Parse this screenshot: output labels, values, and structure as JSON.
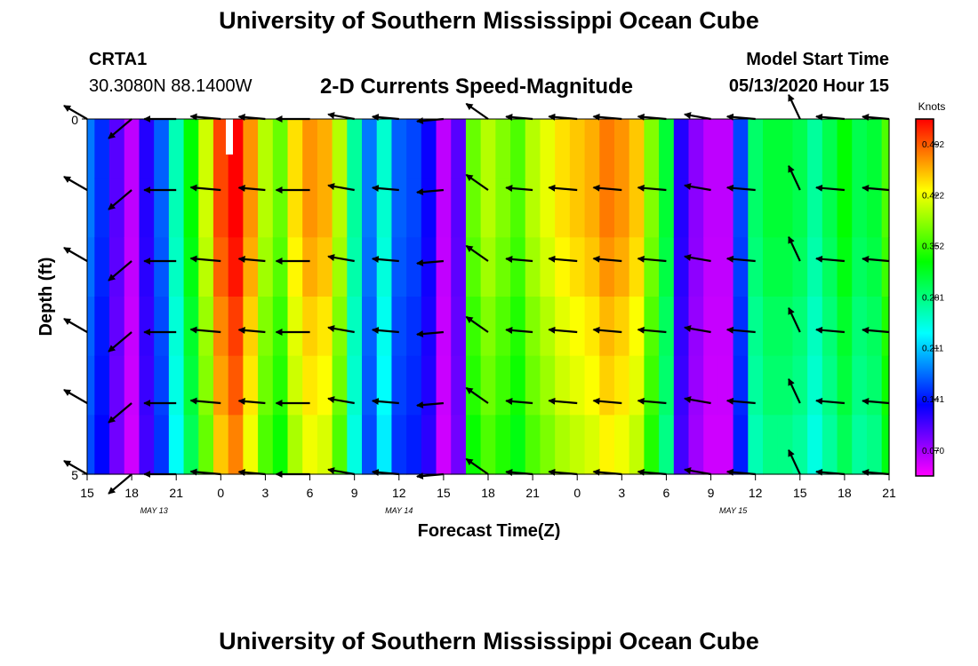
{
  "header": {
    "title": "University of Southern Mississippi Ocean Cube",
    "station_id": "CRTA1",
    "station_coords": "30.3080N 88.1400W",
    "plot_title": "2-D Currents Speed-Magnitude",
    "start_label": "Model Start Time",
    "start_value": "05/13/2020 Hour 15"
  },
  "footer": {
    "title": "University of Southern Mississippi Ocean Cube"
  },
  "chart_data": {
    "type": "heatmap",
    "title": "2-D Currents Speed-Magnitude",
    "xlabel": "Forecast Time(Z)",
    "ylabel": "Depth (ft)",
    "x_hours": [
      0,
      54
    ],
    "ylim": [
      0,
      5
    ],
    "y_ticks": [
      "0",
      "5"
    ],
    "x_tick_labels": [
      "15",
      "18",
      "21",
      "0",
      "3",
      "6",
      "9",
      "12",
      "15",
      "18",
      "21",
      "0",
      "3",
      "6",
      "9",
      "12",
      "15",
      "18",
      "21"
    ],
    "date_labels": [
      {
        "text": "MAY 13",
        "hour": 4.5
      },
      {
        "text": "MAY 14",
        "hour": 21
      },
      {
        "text": "MAY 15",
        "hour": 43.5
      }
    ],
    "colorbar": {
      "unit": "Knots",
      "min": 0.035,
      "max": 0.527,
      "ticks": [
        "0.492",
        "0.422",
        "0.352",
        "0.281",
        "0.211",
        "0.141",
        "0.070"
      ],
      "tick_values": [
        0.492,
        0.422,
        0.352,
        0.281,
        0.211,
        0.141,
        0.07
      ]
    },
    "speed_knots": [
      0.18,
      0.15,
      0.1,
      0.06,
      0.12,
      0.17,
      0.26,
      0.33,
      0.41,
      0.5,
      0.53,
      0.47,
      0.4,
      0.37,
      0.44,
      0.47,
      0.46,
      0.4,
      0.27,
      0.18,
      0.25,
      0.17,
      0.16,
      0.13,
      0.06,
      0.1,
      0.37,
      0.4,
      0.38,
      0.36,
      0.4,
      0.42,
      0.44,
      0.45,
      0.46,
      0.48,
      0.47,
      0.45,
      0.38,
      0.31,
      0.12,
      0.08,
      0.06,
      0.06,
      0.16,
      0.29,
      0.31,
      0.31,
      0.3,
      0.27,
      0.3,
      0.33,
      0.3,
      0.31,
      0.36
    ],
    "depth_speed_factor": [
      1.0,
      1.0,
      0.98,
      0.95,
      0.93,
      0.9
    ],
    "vectors": {
      "hours": [
        0,
        3,
        6,
        9,
        12,
        15,
        18,
        21,
        24,
        27,
        30,
        33,
        36,
        39,
        42,
        45,
        48,
        51,
        54
      ],
      "depths": [
        0,
        1,
        2,
        3,
        4,
        5
      ],
      "direction_deg": [
        300,
        230,
        270,
        275,
        275,
        270,
        280,
        275,
        265,
        305,
        275,
        275,
        275,
        275,
        280,
        275,
        335,
        275,
        275
      ],
      "lengths_px": [
        30,
        34,
        36,
        34,
        30,
        38,
        30,
        30,
        30,
        30,
        30,
        32,
        32,
        32,
        30,
        32,
        30,
        32,
        30
      ]
    }
  }
}
